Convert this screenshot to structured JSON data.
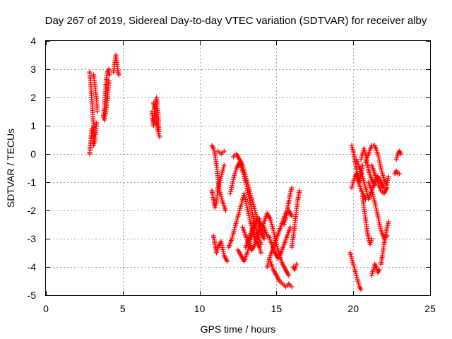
{
  "chart_data": {
    "type": "scatter",
    "title": "Day 267 of 2019, Sidereal Day-to-day VTEC variation (SDTVAR) for receiver alby",
    "xlabel": "GPS time / hours",
    "ylabel": "SDTVAR / TECUs",
    "xlim": [
      0,
      25
    ],
    "ylim": [
      -5,
      4
    ],
    "xticks": [
      0,
      5,
      10,
      15,
      20,
      25
    ],
    "yticks": [
      -5,
      -4,
      -3,
      -2,
      -1,
      0,
      1,
      2,
      3,
      4
    ],
    "grid": true,
    "marker": "plus",
    "color": "#ff0000",
    "tracks": [
      {
        "x": [
          2.85,
          2.9,
          2.95,
          3.0,
          3.05,
          3.1,
          3.15
        ],
        "y": [
          2.9,
          2.6,
          2.2,
          1.8,
          1.4,
          1.0,
          0.7
        ]
      },
      {
        "x": [
          2.85,
          2.9,
          2.95,
          3.0,
          3.05,
          3.1,
          3.2,
          3.3
        ],
        "y": [
          0.0,
          0.3,
          0.6,
          0.9,
          0.6,
          0.3,
          0.5,
          1.1
        ]
      },
      {
        "x": [
          3.1,
          3.2,
          3.3,
          3.35
        ],
        "y": [
          2.8,
          2.4,
          1.9,
          1.5
        ]
      },
      {
        "x": [
          3.75,
          3.8,
          3.85,
          3.9,
          3.95,
          4.0,
          4.1,
          4.15
        ],
        "y": [
          1.3,
          1.6,
          2.0,
          2.4,
          2.7,
          2.9,
          3.0,
          2.8
        ]
      },
      {
        "x": [
          3.8,
          3.9,
          4.0,
          4.05,
          4.1
        ],
        "y": [
          1.2,
          1.5,
          1.9,
          2.3,
          2.6
        ]
      },
      {
        "x": [
          4.4,
          4.45,
          4.5,
          4.55,
          4.6,
          4.65,
          4.7,
          4.75
        ],
        "y": [
          2.9,
          3.1,
          3.3,
          3.5,
          3.3,
          3.1,
          2.9,
          2.8
        ]
      },
      {
        "x": [
          6.9,
          6.95,
          7.0,
          7.05,
          7.1,
          7.2,
          7.3,
          7.35
        ],
        "y": [
          1.5,
          1.2,
          1.0,
          1.3,
          1.7,
          2.0,
          1.4,
          0.8
        ]
      },
      {
        "x": [
          7.0,
          7.1,
          7.2,
          7.3,
          7.4
        ],
        "y": [
          1.8,
          1.5,
          1.1,
          0.8,
          0.6
        ]
      },
      {
        "x": [
          10.8,
          10.9,
          11.0,
          11.1,
          11.2,
          11.3,
          11.5,
          11.7
        ],
        "y": [
          0.3,
          0.2,
          0.0,
          -0.4,
          -0.9,
          -1.3,
          -1.7,
          -2.0
        ]
      },
      {
        "x": [
          10.8,
          10.9,
          11.0,
          11.1,
          11.2,
          11.4,
          11.6
        ],
        "y": [
          -1.3,
          -1.6,
          -1.9,
          -1.7,
          -1.2,
          -0.8,
          -0.4
        ]
      },
      {
        "x": [
          11.2,
          11.4,
          11.6
        ],
        "y": [
          0.1,
          0.0,
          0.1
        ]
      },
      {
        "x": [
          10.9,
          11.0,
          11.1,
          11.2,
          11.4,
          11.6,
          11.8
        ],
        "y": [
          -2.9,
          -3.2,
          -3.5,
          -3.3,
          -3.1,
          -3.6,
          -3.8
        ]
      },
      {
        "x": [
          11.9,
          12.1,
          12.3,
          12.5,
          12.7,
          12.9,
          13.1,
          13.3,
          13.5,
          13.7,
          13.9,
          14.0
        ],
        "y": [
          -3.3,
          -3.0,
          -2.6,
          -2.2,
          -1.8,
          -1.4,
          -1.9,
          -2.4,
          -2.8,
          -3.1,
          -3.3,
          -3.5
        ]
      },
      {
        "x": [
          12.0,
          12.2,
          12.4,
          12.6,
          12.8,
          13.0,
          13.2,
          13.4,
          13.6,
          13.8,
          14.0
        ],
        "y": [
          -1.4,
          -0.9,
          -0.5,
          -0.3,
          -0.6,
          -1.0,
          -1.5,
          -2.0,
          -2.5,
          -2.9,
          -3.2
        ]
      },
      {
        "x": [
          12.2,
          12.4,
          12.6,
          12.8,
          13.0,
          13.2,
          13.4,
          13.6,
          13.8,
          14.0,
          14.2
        ],
        "y": [
          -0.1,
          0.0,
          -0.2,
          -0.4,
          -0.8,
          -1.2,
          -1.6,
          -2.0,
          -2.4,
          -2.8,
          -3.0
        ]
      },
      {
        "x": [
          12.5,
          12.7,
          12.9,
          13.1,
          13.3,
          13.5,
          13.7,
          13.9
        ],
        "y": [
          -3.4,
          -3.6,
          -3.8,
          -3.5,
          -3.1,
          -2.7,
          -2.4,
          -2.3
        ]
      },
      {
        "x": [
          13.0,
          13.2,
          13.4,
          13.6,
          13.8,
          14.0,
          14.2
        ],
        "y": [
          -3.3,
          -3.0,
          -2.7,
          -2.4,
          -2.3,
          -2.5,
          -2.8
        ]
      },
      {
        "x": [
          12.8,
          13.0,
          13.2,
          13.4,
          13.6,
          13.8,
          14.0,
          14.2,
          14.4
        ],
        "y": [
          -2.6,
          -2.9,
          -3.2,
          -3.4,
          -3.2,
          -2.8,
          -2.5,
          -2.6,
          -2.9
        ]
      },
      {
        "x": [
          14.0,
          14.2,
          14.4,
          14.6,
          14.8,
          15.0,
          15.2,
          15.4,
          15.6,
          15.8
        ],
        "y": [
          -2.8,
          -2.4,
          -2.1,
          -2.3,
          -2.7,
          -3.2,
          -3.6,
          -3.9,
          -4.1,
          -4.3
        ]
      },
      {
        "x": [
          14.4,
          14.6,
          14.8,
          15.0,
          15.2,
          15.4,
          15.6,
          15.8,
          16.0
        ],
        "y": [
          -4.0,
          -3.6,
          -3.3,
          -3.0,
          -2.7,
          -2.4,
          -2.1,
          -2.0,
          -2.2
        ]
      },
      {
        "x": [
          14.5,
          14.7,
          14.9,
          15.1,
          15.3,
          15.5,
          15.7,
          15.9
        ],
        "y": [
          -2.9,
          -3.2,
          -3.5,
          -3.7,
          -3.5,
          -3.2,
          -2.9,
          -2.6
        ]
      },
      {
        "x": [
          14.6,
          14.8,
          15.0,
          15.2,
          15.4,
          15.6,
          15.8,
          16.0
        ],
        "y": [
          -3.8,
          -4.1,
          -4.3,
          -4.5,
          -4.6,
          -4.7,
          -4.6,
          -4.7
        ]
      },
      {
        "x": [
          15.5,
          15.6,
          15.7,
          15.8,
          15.9,
          16.0
        ],
        "y": [
          -2.5,
          -2.3,
          -2.0,
          -1.7,
          -1.4,
          -1.2
        ]
      },
      {
        "x": [
          16.0,
          16.1,
          16.2,
          16.3,
          16.4,
          16.5
        ],
        "y": [
          -3.3,
          -2.9,
          -2.5,
          -2.0,
          -1.6,
          -1.3
        ]
      },
      {
        "x": [
          16.1,
          16.2,
          16.3
        ],
        "y": [
          -4.0,
          -4.1,
          -3.9
        ]
      },
      {
        "x": [
          19.8,
          19.9,
          20.0,
          20.1,
          20.2,
          20.3,
          20.4,
          20.5
        ],
        "y": [
          -3.5,
          -3.7,
          -3.9,
          -4.1,
          -4.3,
          -4.5,
          -4.7,
          -4.8
        ]
      },
      {
        "x": [
          19.9,
          20.0,
          20.1,
          20.2,
          20.3,
          20.4,
          20.5,
          20.6
        ],
        "y": [
          0.3,
          0.1,
          -0.2,
          -0.5,
          -0.8,
          -1.0,
          -0.7,
          -0.4
        ]
      },
      {
        "x": [
          19.9,
          20.0,
          20.1,
          20.2,
          20.3,
          20.4,
          20.6,
          20.8
        ],
        "y": [
          -1.2,
          -1.0,
          -0.8,
          -0.7,
          -0.9,
          -1.1,
          -1.4,
          -1.6
        ]
      },
      {
        "x": [
          20.2,
          20.4,
          20.6,
          20.8,
          21.0,
          21.2,
          21.4,
          21.6,
          21.8,
          22.0
        ],
        "y": [
          -0.2,
          -0.5,
          -0.8,
          -1.2,
          -1.6,
          -1.3,
          -1.0,
          -0.8,
          -1.0,
          -1.2
        ]
      },
      {
        "x": [
          20.5,
          20.6,
          20.7,
          20.8,
          20.9,
          21.0,
          21.2,
          21.4
        ],
        "y": [
          -0.2,
          0.0,
          0.2,
          0.0,
          -0.3,
          -0.6,
          -0.9,
          -1.1
        ]
      },
      {
        "x": [
          20.8,
          21.0,
          21.2,
          21.4,
          21.6,
          21.8,
          22.0,
          22.2
        ],
        "y": [
          -0.3,
          0.0,
          0.3,
          0.3,
          0.0,
          -0.5,
          -0.9,
          -1.1
        ]
      },
      {
        "x": [
          20.6,
          20.7,
          20.8,
          20.9,
          21.0,
          21.1,
          21.2
        ],
        "y": [
          -1.5,
          -1.9,
          -2.3,
          -2.7,
          -3.0,
          -3.2,
          -3.0
        ]
      },
      {
        "x": [
          21.0,
          21.2,
          21.4,
          21.6,
          21.8,
          22.0,
          22.2
        ],
        "y": [
          -1.0,
          -1.3,
          -1.7,
          -2.2,
          -2.7,
          -3.0,
          -2.9
        ]
      },
      {
        "x": [
          21.2,
          21.4,
          21.6,
          21.8,
          22.0,
          22.2
        ],
        "y": [
          -0.4,
          -0.7,
          -1.0,
          -1.3,
          -1.4,
          -1.2
        ]
      },
      {
        "x": [
          21.2,
          21.3,
          21.4,
          21.5,
          21.6,
          21.7
        ],
        "y": [
          -4.3,
          -4.1,
          -3.9,
          -4.0,
          -4.2,
          -4.1
        ]
      },
      {
        "x": [
          21.8,
          21.9,
          22.0,
          22.1,
          22.2,
          22.3
        ],
        "y": [
          -3.9,
          -3.6,
          -3.2,
          -2.9,
          -2.6,
          -2.4
        ]
      },
      {
        "x": [
          22.2,
          22.3
        ],
        "y": [
          -1.0,
          -0.8
        ]
      },
      {
        "x": [
          22.7,
          22.8,
          22.9,
          23.0
        ],
        "y": [
          -0.7,
          -0.6,
          -0.7,
          -0.7
        ]
      },
      {
        "x": [
          22.8,
          22.9,
          23.0,
          23.1
        ],
        "y": [
          -0.2,
          0.0,
          0.1,
          0.0
        ]
      }
    ]
  }
}
